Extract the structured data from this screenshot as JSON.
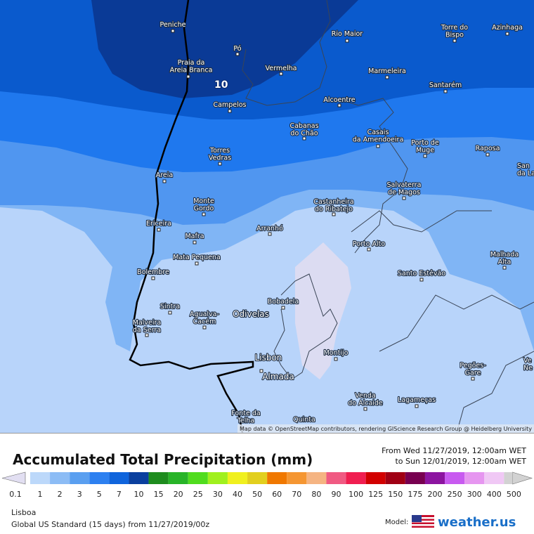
{
  "map": {
    "contour_label": "10",
    "attribution": "Map data © OpenStreetMap contributors, rendering GIScience Research Group @ Heidelberg University",
    "places": [
      {
        "lines": [
          "Peniche"
        ]
      },
      {
        "lines": [
          "Pó"
        ]
      },
      {
        "lines": [
          "Praia da",
          "Areia Branca"
        ]
      },
      {
        "lines": [
          "Rio Maior"
        ]
      },
      {
        "lines": [
          "Torre do",
          "Bispo"
        ]
      },
      {
        "lines": [
          "Azinhaga"
        ]
      },
      {
        "lines": [
          "Vermelha"
        ]
      },
      {
        "lines": [
          "Marmeleira"
        ]
      },
      {
        "lines": [
          "Santarém"
        ]
      },
      {
        "lines": [
          "Alcoentre"
        ]
      },
      {
        "lines": [
          "Campelos"
        ]
      },
      {
        "lines": [
          "Cabanas",
          "do Chão"
        ]
      },
      {
        "lines": [
          "Casais",
          "da Amendoeira"
        ]
      },
      {
        "lines": [
          "Porto de",
          "Muge"
        ]
      },
      {
        "lines": [
          "Raposa"
        ]
      },
      {
        "lines": [
          "San",
          "da Lan"
        ]
      },
      {
        "lines": [
          "Torres",
          "Vedras"
        ]
      },
      {
        "lines": [
          "Areia"
        ]
      },
      {
        "lines": [
          "Salvaterra",
          "de Magos"
        ]
      },
      {
        "lines": [
          "Monte",
          "Gordo"
        ]
      },
      {
        "lines": [
          "Castanheira",
          "do Ribatejo"
        ]
      },
      {
        "lines": [
          "Ericeira"
        ]
      },
      {
        "lines": [
          "Arranhó"
        ]
      },
      {
        "lines": [
          "Mafra"
        ]
      },
      {
        "lines": [
          "Porto Alto"
        ]
      },
      {
        "lines": [
          "Malhada",
          "Alta"
        ]
      },
      {
        "lines": [
          "Mata Pequena"
        ]
      },
      {
        "lines": [
          "Bolembre"
        ]
      },
      {
        "lines": [
          "Santo Estêvão"
        ]
      },
      {
        "lines": [
          "Bobadela"
        ]
      },
      {
        "lines": [
          "Sintra"
        ]
      },
      {
        "lines": [
          "Agualva-",
          "Cacém"
        ]
      },
      {
        "lines": [
          "Odivelas"
        ]
      },
      {
        "lines": [
          "Malveira",
          "da Serra"
        ]
      },
      {
        "lines": [
          "Montijo"
        ]
      },
      {
        "lines": [
          "Lisbon"
        ]
      },
      {
        "lines": [
          "Ve",
          "Ne"
        ]
      },
      {
        "lines": [
          "Pegões-",
          "Gare"
        ]
      },
      {
        "lines": [
          "Almada"
        ]
      },
      {
        "lines": [
          "Venda",
          "do Alcaide"
        ]
      },
      {
        "lines": [
          "Lagameças"
        ]
      },
      {
        "lines": [
          "Fonte da",
          "Telha"
        ]
      },
      {
        "lines": [
          "Quinta"
        ]
      }
    ]
  },
  "header": {
    "title": "Accumulated Total Precipitation (mm)",
    "from": "From Wed 11/27/2019, 12:00am WET",
    "to": "to Sun 12/01/2019, 12:00am WET"
  },
  "legend": {
    "bins": [
      {
        "value": 0.1,
        "color": "#e2dff2"
      },
      {
        "value": 1,
        "color": "#bcd8fa"
      },
      {
        "value": 2,
        "color": "#8cbcf5"
      },
      {
        "value": 3,
        "color": "#5a9ff0"
      },
      {
        "value": 5,
        "color": "#2d80f0"
      },
      {
        "value": 7,
        "color": "#0f64dc"
      },
      {
        "value": 10,
        "color": "#0a3f9e"
      },
      {
        "value": 15,
        "color": "#1e8c1e"
      },
      {
        "value": 20,
        "color": "#28b428"
      },
      {
        "value": 25,
        "color": "#50dc1e"
      },
      {
        "value": 30,
        "color": "#a0f01e"
      },
      {
        "value": 40,
        "color": "#f0f01e"
      },
      {
        "value": 50,
        "color": "#e2cf1e"
      },
      {
        "value": 60,
        "color": "#f07800"
      },
      {
        "value": 70,
        "color": "#f59632"
      },
      {
        "value": 80,
        "color": "#f5b482"
      },
      {
        "value": 90,
        "color": "#f05a82"
      },
      {
        "value": 100,
        "color": "#f01e50"
      },
      {
        "value": 125,
        "color": "#d20000"
      },
      {
        "value": 150,
        "color": "#a00014"
      },
      {
        "value": 175,
        "color": "#780050"
      },
      {
        "value": 200,
        "color": "#8c14a0"
      },
      {
        "value": 250,
        "color": "#c85af0"
      },
      {
        "value": 300,
        "color": "#e696f0"
      },
      {
        "value": 400,
        "color": "#f0c8f5"
      },
      {
        "value": 500,
        "color": "#d2d2d2"
      }
    ]
  },
  "footer": {
    "location": "Lisboa",
    "model_run": "Global US Standard (15 days)  from  11/27/2019/00z",
    "model_label": "Model:",
    "brand": "weather.us"
  }
}
